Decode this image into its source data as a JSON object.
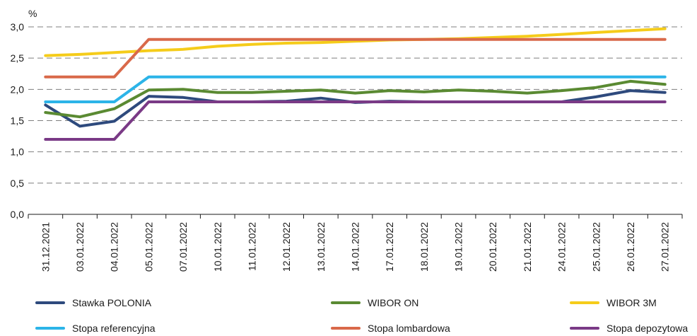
{
  "chart_data": {
    "type": "line",
    "title": "",
    "xlabel": "",
    "ylabel": "%",
    "ylim": [
      0,
      3.0
    ],
    "yticks": [
      "0,0",
      "0,5",
      "1,0",
      "1,5",
      "2,0",
      "2,5",
      "3,0"
    ],
    "grid": "horizontal dashed",
    "legend_position": "bottom",
    "categories": [
      "31.12.2021",
      "03.01.2022",
      "04.01.2022",
      "05.01.2022",
      "07.01.2022",
      "10.01.2022",
      "11.01.2022",
      "12.01.2022",
      "13.01.2022",
      "14.01.2022",
      "17.01.2022",
      "18.01.2022",
      "19.01.2022",
      "20.01.2022",
      "21.01.2022",
      "24.01.2022",
      "25.01.2022",
      "26.01.2022",
      "27.01.2022"
    ],
    "series": [
      {
        "name": "Stawka POLONIA",
        "color": "#2e4a7d",
        "values": [
          1.75,
          1.41,
          1.49,
          1.89,
          1.87,
          1.8,
          1.8,
          1.81,
          1.86,
          1.79,
          1.81,
          1.8,
          1.8,
          1.8,
          1.8,
          1.8,
          1.88,
          1.98,
          1.95
        ]
      },
      {
        "name": "WIBOR ON",
        "color": "#5a8a32",
        "values": [
          1.63,
          1.56,
          1.69,
          1.99,
          2.0,
          1.95,
          1.95,
          1.97,
          1.99,
          1.94,
          1.98,
          1.96,
          1.99,
          1.97,
          1.94,
          1.98,
          2.03,
          2.13,
          2.08
        ]
      },
      {
        "name": "WIBOR 3M",
        "color": "#f5cc1a",
        "values": [
          2.54,
          2.56,
          2.59,
          2.62,
          2.64,
          2.69,
          2.72,
          2.74,
          2.75,
          2.77,
          2.79,
          2.8,
          2.81,
          2.83,
          2.85,
          2.88,
          2.91,
          2.94,
          2.97
        ]
      },
      {
        "name": "Stopa referencyjna",
        "color": "#2cb4e8",
        "values": [
          1.8,
          1.8,
          1.8,
          2.2,
          2.2,
          2.2,
          2.2,
          2.2,
          2.2,
          2.2,
          2.2,
          2.2,
          2.2,
          2.2,
          2.2,
          2.2,
          2.2,
          2.2,
          2.2
        ]
      },
      {
        "name": "Stopa lombardowa",
        "color": "#d9694a",
        "values": [
          2.2,
          2.2,
          2.2,
          2.8,
          2.8,
          2.8,
          2.8,
          2.8,
          2.8,
          2.8,
          2.8,
          2.8,
          2.8,
          2.8,
          2.8,
          2.8,
          2.8,
          2.8,
          2.8
        ]
      },
      {
        "name": "Stopa depozytowa",
        "color": "#7a3a86",
        "values": [
          1.2,
          1.2,
          1.2,
          1.8,
          1.8,
          1.8,
          1.8,
          1.8,
          1.8,
          1.8,
          1.8,
          1.8,
          1.8,
          1.8,
          1.8,
          1.8,
          1.8,
          1.8,
          1.8
        ]
      }
    ]
  }
}
